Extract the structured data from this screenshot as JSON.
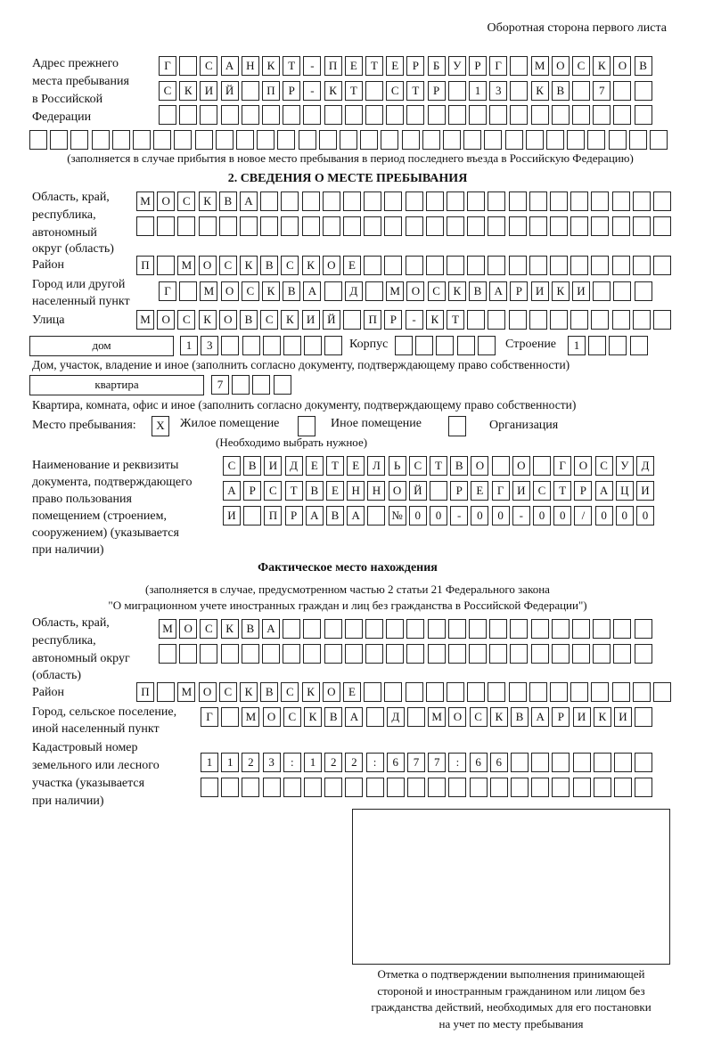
{
  "header": {
    "page_side": "Оборотная сторона первого листа"
  },
  "prev_address": {
    "label_lines": [
      "Адрес прежнего",
      "места пребывания",
      "в Российской",
      "Федерации"
    ],
    "rows": [
      [
        "Г",
        "",
        "С",
        "А",
        "Н",
        "К",
        "Т",
        "-",
        "П",
        "Е",
        "Т",
        "Е",
        "Р",
        "Б",
        "У",
        "Р",
        "Г",
        "",
        "М",
        "О",
        "С",
        "К",
        "О",
        "В"
      ],
      [
        "С",
        "К",
        "И",
        "Й",
        "",
        "П",
        "Р",
        "-",
        "К",
        "Т",
        "",
        "С",
        "Т",
        "Р",
        "",
        "1",
        "3",
        "",
        "К",
        "В",
        "",
        "7",
        "",
        ""
      ],
      [
        "",
        "",
        "",
        "",
        "",
        "",
        "",
        "",
        "",
        "",
        "",
        "",
        "",
        "",
        "",
        "",
        "",
        "",
        "",
        "",
        "",
        "",
        "",
        ""
      ],
      [
        "",
        "",
        "",
        "",
        "",
        "",
        "",
        "",
        "",
        "",
        "",
        "",
        "",
        "",
        "",
        "",
        "",
        "",
        "",
        "",
        "",
        "",
        "",
        "",
        "",
        "",
        "",
        "",
        "",
        "",
        ""
      ]
    ],
    "note": "(заполняется в случае прибытия в новое место пребывания в период последнего въезда в Российскую Федерацию)"
  },
  "section2": {
    "title": "2. СВЕДЕНИЯ О МЕСТЕ ПРЕБЫВАНИЯ",
    "region": {
      "label_lines": [
        "Область, край,",
        "республика,",
        "автономный",
        "округ (область)"
      ],
      "rows": [
        [
          "М",
          "О",
          "С",
          "К",
          "В",
          "А",
          "",
          "",
          "",
          "",
          "",
          "",
          "",
          "",
          "",
          "",
          "",
          "",
          "",
          "",
          "",
          "",
          "",
          "",
          "",
          ""
        ],
        [
          "",
          "",
          "",
          "",
          "",
          "",
          "",
          "",
          "",
          "",
          "",
          "",
          "",
          "",
          "",
          "",
          "",
          "",
          "",
          "",
          "",
          "",
          "",
          "",
          "",
          ""
        ]
      ]
    },
    "district": {
      "label": "Район",
      "chars": [
        "П",
        "",
        "М",
        "О",
        "С",
        "К",
        "В",
        "С",
        "К",
        "О",
        "Е",
        "",
        "",
        "",
        "",
        "",
        "",
        "",
        "",
        "",
        "",
        "",
        "",
        "",
        "",
        ""
      ]
    },
    "city": {
      "label_lines": [
        "Город или другой",
        "населенный пункт"
      ],
      "chars": [
        "Г",
        "",
        "М",
        "О",
        "С",
        "К",
        "В",
        "А",
        "",
        "Д",
        "",
        "М",
        "О",
        "С",
        "К",
        "В",
        "А",
        "Р",
        "И",
        "К",
        "И",
        "",
        "",
        ""
      ]
    },
    "street": {
      "label": "Улица",
      "chars": [
        "М",
        "О",
        "С",
        "К",
        "О",
        "В",
        "С",
        "К",
        "И",
        "Й",
        "",
        "П",
        "Р",
        "-",
        "К",
        "Т",
        "",
        "",
        "",
        "",
        "",
        "",
        "",
        "",
        "",
        ""
      ]
    },
    "house": {
      "type_value": "дом",
      "number": [
        "1",
        "3",
        "",
        "",
        "",
        "",
        "",
        ""
      ],
      "korpus_label": "Корпус",
      "korpus": [
        "",
        "",
        "",
        "",
        ""
      ],
      "stroenie_label": "Строение",
      "stroenie": [
        "1",
        "",
        "",
        ""
      ],
      "note": "Дом, участок, владение и иное (заполнить согласно документу, подтверждающему право собственности)"
    },
    "apartment": {
      "type_value": "квартира",
      "number": [
        "7",
        "",
        "",
        ""
      ],
      "note": "Квартира, комната, офис и иное (заполнить согласно документу, подтверждающему право собственности)"
    },
    "stay_place": {
      "label": "Место пребывания:",
      "options": [
        {
          "mark": "X",
          "label": "Жилое помещение"
        },
        {
          "mark": "",
          "label": "Иное помещение"
        },
        {
          "mark": "",
          "label": "Организация"
        }
      ],
      "note": "(Необходимо выбрать нужное)"
    },
    "document": {
      "label_lines": [
        "Наименование и реквизиты",
        "документа, подтверждающего",
        "право пользования",
        "помещением (строением,",
        "сооружением) (указывается",
        "при наличии)"
      ],
      "rows": [
        [
          "С",
          "В",
          "И",
          "Д",
          "Е",
          "Т",
          "Е",
          "Л",
          "Ь",
          "С",
          "Т",
          "В",
          "О",
          "",
          "О",
          "",
          "Г",
          "О",
          "С",
          "У",
          "Д"
        ],
        [
          "А",
          "Р",
          "С",
          "Т",
          "В",
          "Е",
          "Н",
          "Н",
          "О",
          "Й",
          "",
          "Р",
          "Е",
          "Г",
          "И",
          "С",
          "Т",
          "Р",
          "А",
          "Ц",
          "И"
        ],
        [
          "И",
          "",
          "П",
          "Р",
          "А",
          "В",
          "А",
          "",
          "№",
          "0",
          "0",
          "-",
          "0",
          "0",
          "-",
          "0",
          "0",
          "/",
          "0",
          "0",
          "0"
        ]
      ]
    }
  },
  "actual": {
    "title": "Фактическое место нахождения",
    "note_lines": [
      "(заполняется в случае, предусмотренном частью 2 статьи 21 Федерального закона",
      "\"О миграционном учете иностранных граждан и лиц без гражданства в Российской Федерации\")"
    ],
    "region": {
      "label_lines": [
        "Область, край,",
        "республика,",
        "автономный округ",
        "(область)"
      ],
      "rows": [
        [
          "М",
          "О",
          "С",
          "К",
          "В",
          "А",
          "",
          "",
          "",
          "",
          "",
          "",
          "",
          "",
          "",
          "",
          "",
          "",
          "",
          "",
          "",
          "",
          "",
          ""
        ],
        [
          "",
          "",
          "",
          "",
          "",
          "",
          "",
          "",
          "",
          "",
          "",
          "",
          "",
          "",
          "",
          "",
          "",
          "",
          "",
          "",
          "",
          "",
          "",
          ""
        ]
      ]
    },
    "district": {
      "label": "Район",
      "chars": [
        "П",
        "",
        "М",
        "О",
        "С",
        "К",
        "В",
        "С",
        "К",
        "О",
        "Е",
        "",
        "",
        "",
        "",
        "",
        "",
        "",
        "",
        "",
        "",
        "",
        "",
        "",
        "",
        ""
      ]
    },
    "city": {
      "label_lines": [
        "Город, сельское поселение,",
        "иной населенный пункт"
      ],
      "chars": [
        "Г",
        "",
        "М",
        "О",
        "С",
        "К",
        "В",
        "А",
        "",
        "Д",
        "",
        "М",
        "О",
        "С",
        "К",
        "В",
        "А",
        "Р",
        "И",
        "К",
        "И",
        ""
      ]
    },
    "cadastral": {
      "label_lines": [
        "Кадастровый номер",
        "земельного или лесного",
        "участка (указывается",
        "при наличии)"
      ],
      "rows": [
        [
          "1",
          "1",
          "2",
          "3",
          ":",
          "1",
          "2",
          "2",
          ":",
          "6",
          "7",
          "7",
          ":",
          "6",
          "6",
          "",
          "",
          "",
          "",
          "",
          "",
          ""
        ],
        [
          "",
          "",
          "",
          "",
          "",
          "",
          "",
          "",
          "",
          "",
          "",
          "",
          "",
          "",
          "",
          "",
          "",
          "",
          "",
          "",
          "",
          ""
        ]
      ]
    }
  },
  "stamp": {
    "caption_lines": [
      "Отметка о подтверждении выполнения принимающей",
      "стороной и иностранным гражданином или лицом без",
      "гражданства действий, необходимых для его постановки",
      "на учет по месту пребывания"
    ]
  }
}
